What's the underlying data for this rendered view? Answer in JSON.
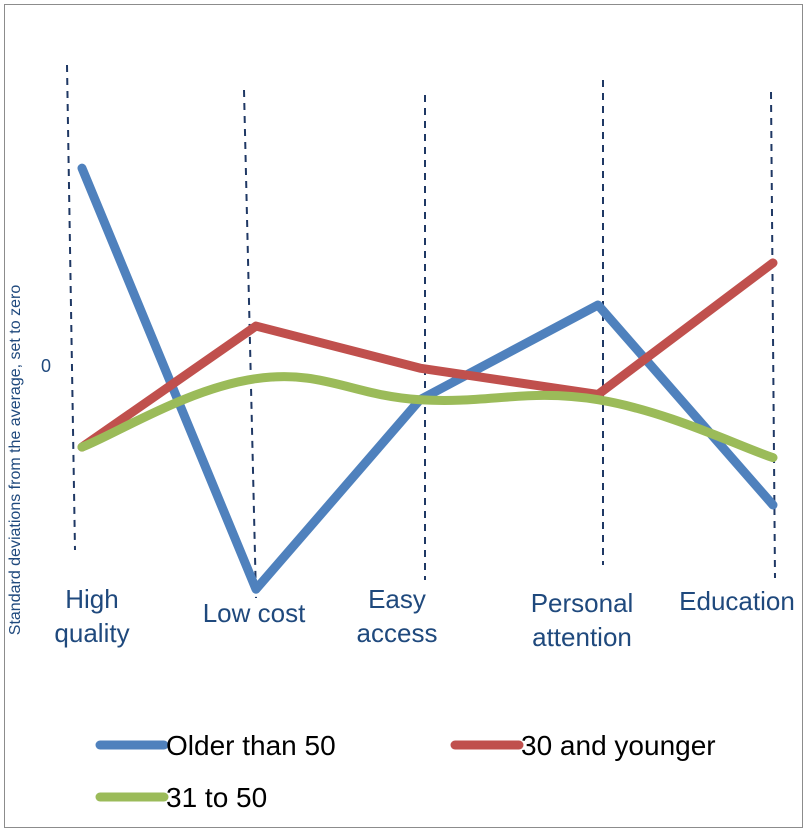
{
  "chart_data": {
    "type": "line",
    "title": "",
    "xlabel": "",
    "ylabel": "Standard deviations from the average, set to zero",
    "y_tick_labels": [
      "0"
    ],
    "categories": [
      [
        "High",
        "quality"
      ],
      [
        "Low cost"
      ],
      [
        "Easy",
        "access"
      ],
      [
        "Personal",
        "attention"
      ],
      [
        "Education"
      ]
    ],
    "series": [
      {
        "name": "Older than 50",
        "color": "#4f81bd",
        "values": [
          2.1,
          -1.9,
          -0.1,
          0.8,
          -1.1
        ]
      },
      {
        "name": "30 and younger",
        "color": "#c0504d",
        "values": [
          -0.55,
          0.6,
          0.2,
          -0.05,
          1.2
        ]
      },
      {
        "name": "31 to 50",
        "color": "#9bbb59",
        "values": [
          -0.55,
          0.1,
          -0.1,
          -0.1,
          -0.65
        ],
        "smooth": true
      }
    ],
    "ylim": [
      -2.05,
      2.7
    ],
    "legend_position": "bottom",
    "grid": "dashed vertical drop lines at each category"
  }
}
